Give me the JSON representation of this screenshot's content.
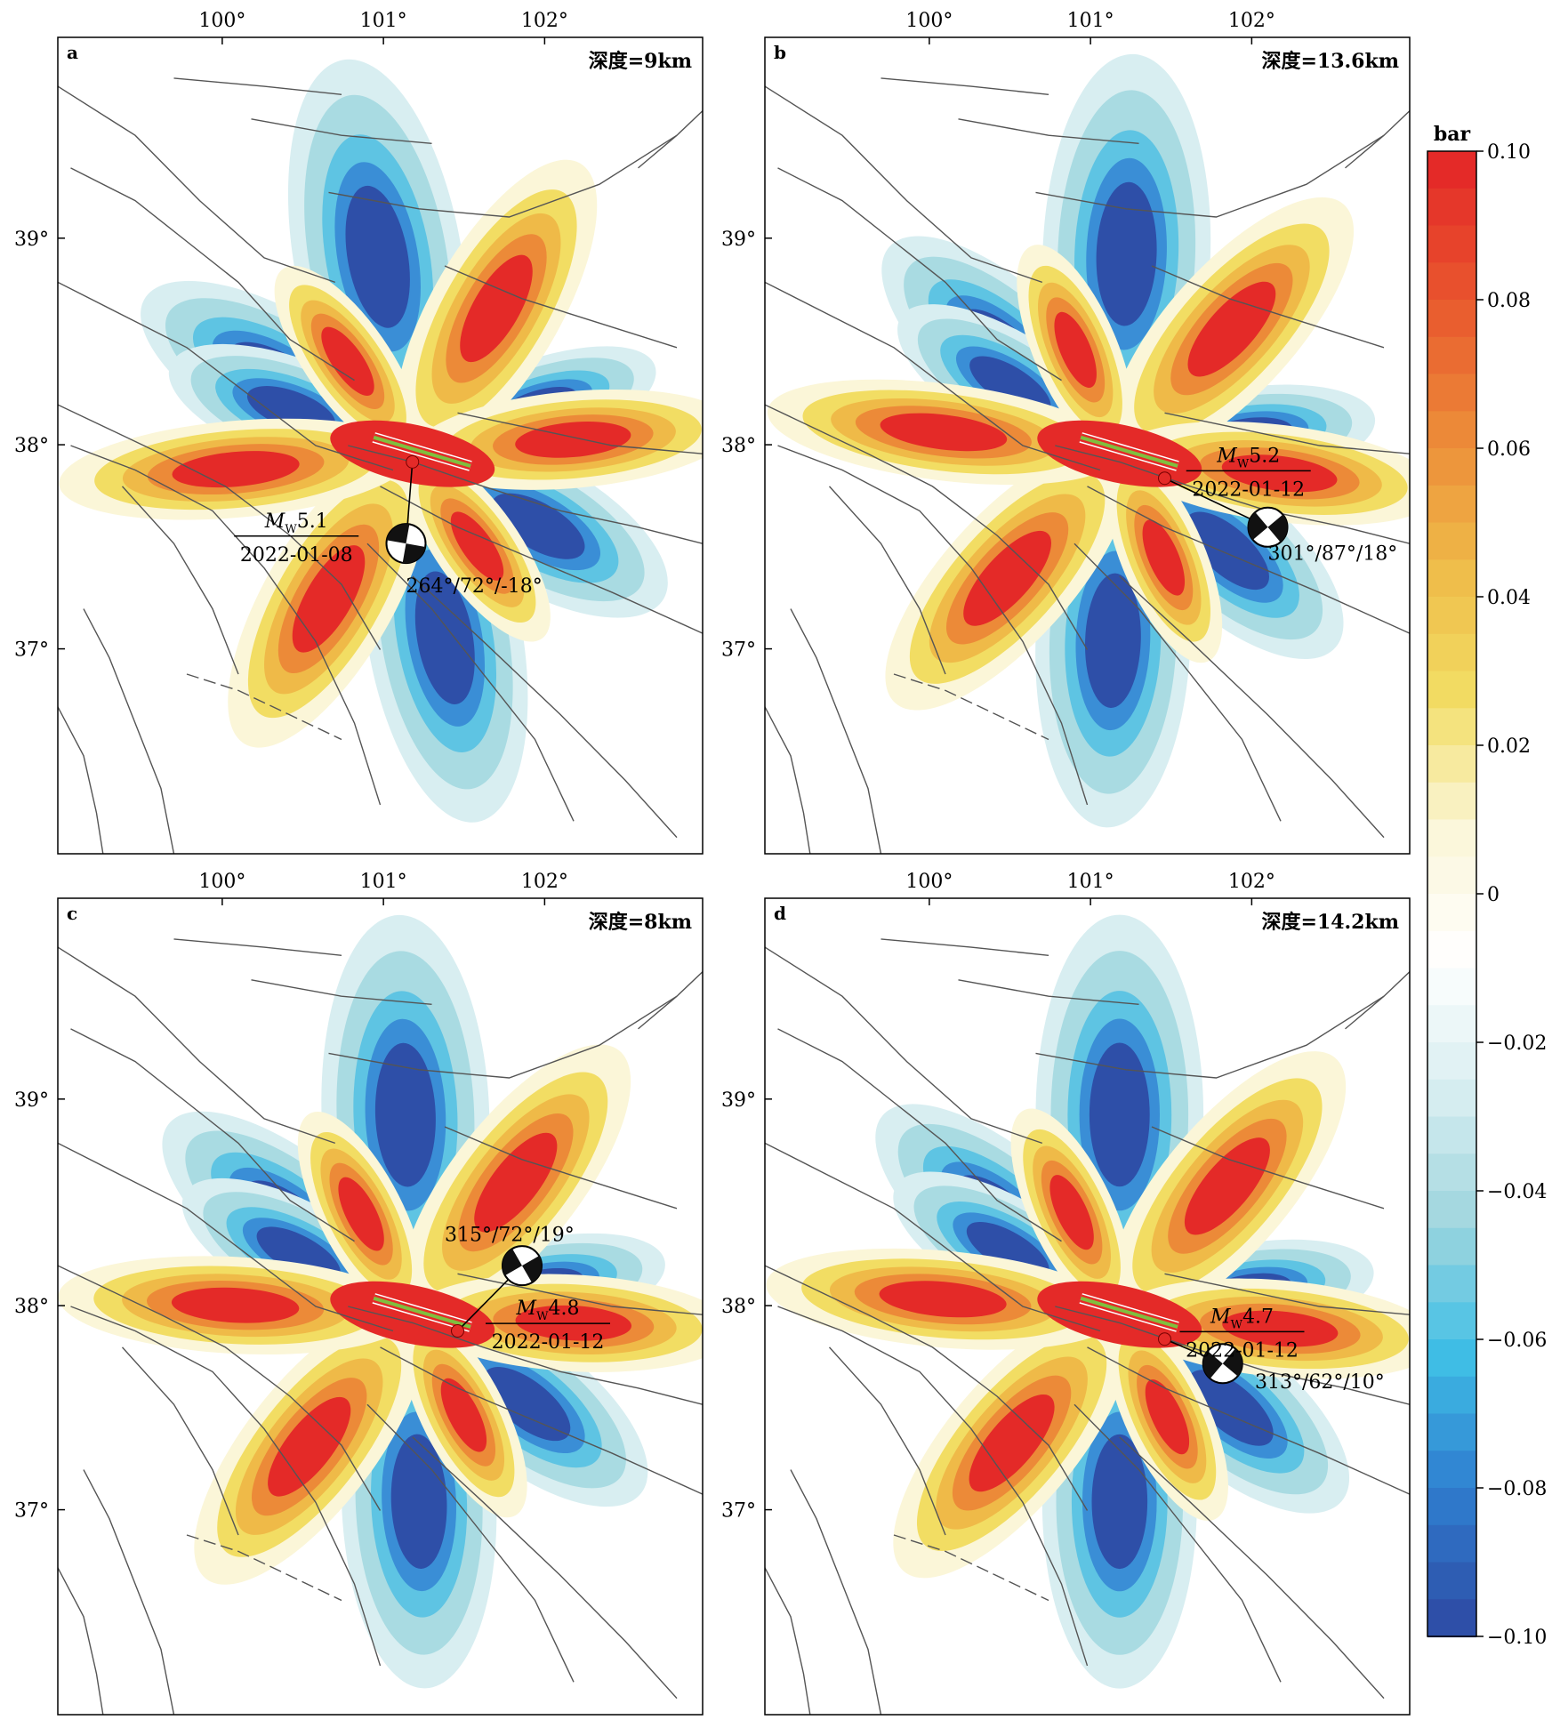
{
  "figure": {
    "longitude_ticks": [
      "100°",
      "101°",
      "102°"
    ],
    "latitude_ticks": [
      "39°",
      "38°",
      "37°"
    ]
  },
  "panels": [
    {
      "id": "a",
      "label": "a",
      "depth_label": "深度=9km",
      "pattern_rotation_deg": 0,
      "event": {
        "magnitude_prefix": "M",
        "magnitude_sub": "W",
        "magnitude_value": "5.1",
        "date": "2022-01-08",
        "mechanism": "264°/72°/-18°",
        "beachball": "lower"
      }
    },
    {
      "id": "b",
      "label": "b",
      "depth_label": "深度=13.6km",
      "pattern_rotation_deg": 12,
      "event": {
        "magnitude_prefix": "M",
        "magnitude_sub": "W",
        "magnitude_value": "5.2",
        "date": "2022-01-12",
        "mechanism": "301°/87°/18°",
        "beachball": "right"
      }
    },
    {
      "id": "c",
      "label": "c",
      "depth_label": "深度=8km",
      "pattern_rotation_deg": 8,
      "event": {
        "magnitude_prefix": "M",
        "magnitude_sub": "W",
        "magnitude_value": "4.8",
        "date": "2022-01-12",
        "mechanism": "315°/72°/19°",
        "beachball": "diag"
      }
    },
    {
      "id": "d",
      "label": "d",
      "depth_label": "深度=14.2km",
      "pattern_rotation_deg": 10,
      "event": {
        "magnitude_prefix": "M",
        "magnitude_sub": "W",
        "magnitude_value": "4.7",
        "date": "2022-01-12",
        "mechanism": "313°/62°/10°",
        "beachball": "diag2"
      }
    }
  ],
  "colorbar": {
    "unit": "bar",
    "ticks": [
      "0.10",
      "0.08",
      "0.06",
      "0.04",
      "0.02",
      "0",
      "−0.02",
      "−0.04",
      "−0.06",
      "−0.08",
      "−0.10"
    ],
    "stops": [
      "#e42a28",
      "#e9572e",
      "#ec8a38",
      "#efba48",
      "#f2dd63",
      "#fbf6d8",
      "#ffffff",
      "#d8eef1",
      "#9fd6de",
      "#3fbfe6",
      "#2f7fd0",
      "#2e4fa8"
    ]
  }
}
